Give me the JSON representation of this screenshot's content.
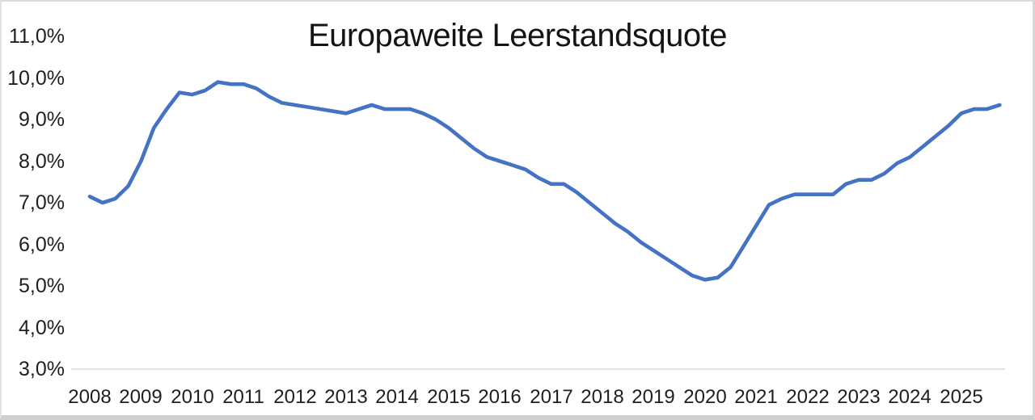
{
  "chart_data": {
    "type": "line",
    "title": "Europaweite Leerstandsquote",
    "x_years": [
      "2008",
      "2009",
      "2010",
      "2011",
      "2012",
      "2013",
      "2014",
      "2015",
      "2016",
      "2017",
      "2018",
      "2019",
      "2020",
      "2021",
      "2022",
      "2023",
      "2024",
      "2025"
    ],
    "points_per_year": 4,
    "x_note": "quarterly points, 2008Q1 - 2025Q4",
    "values": [
      7.15,
      7.0,
      7.1,
      7.4,
      8.0,
      8.8,
      9.25,
      9.65,
      9.6,
      9.7,
      9.9,
      9.85,
      9.85,
      9.75,
      9.55,
      9.4,
      9.35,
      9.3,
      9.25,
      9.2,
      9.15,
      9.25,
      9.35,
      9.25,
      9.25,
      9.25,
      9.15,
      9.0,
      8.8,
      8.55,
      8.3,
      8.1,
      8.0,
      7.9,
      7.8,
      7.6,
      7.45,
      7.45,
      7.25,
      7.0,
      6.75,
      6.5,
      6.3,
      6.05,
      5.85,
      5.65,
      5.45,
      5.25,
      5.15,
      5.2,
      5.45,
      5.95,
      6.45,
      6.95,
      7.1,
      7.2,
      7.2,
      7.2,
      7.2,
      7.45,
      7.55,
      7.55,
      7.7,
      7.95,
      8.1,
      8.35,
      8.6,
      8.85,
      9.15,
      9.25,
      9.25,
      9.35
    ],
    "y_tick_labels": [
      "11,0%",
      "10,0%",
      "9,0%",
      "8,0%",
      "7,0%",
      "6,0%",
      "5,0%",
      "4,0%",
      "3,0%"
    ],
    "y_tick_values": [
      11,
      10,
      9,
      8,
      7,
      6,
      5,
      4,
      3
    ],
    "ylim": [
      3,
      11
    ],
    "xlabel": "",
    "ylabel": "",
    "legend": "none",
    "grid": "baseline only (at 3,0%)",
    "line_color": "#4472C4",
    "gridline_color": "#d9d9d9",
    "text_color": "#1f1f1f"
  }
}
